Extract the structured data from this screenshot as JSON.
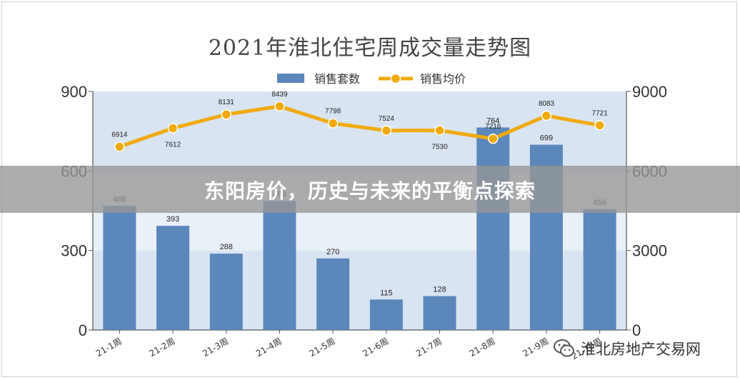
{
  "chart_data": {
    "type": "bar",
    "title": "2021年淮北住宅周成交量走势图",
    "categories": [
      "21-1周",
      "21-2周",
      "21-3周",
      "21-4周",
      "21-5周",
      "21-6周",
      "21-7周",
      "21-8周",
      "21-9周",
      "21-10周"
    ],
    "series": [
      {
        "name": "销售套数",
        "type": "bar",
        "axis": "left",
        "values": [
          468,
          393,
          288,
          486,
          270,
          115,
          128,
          764,
          699,
          456
        ],
        "color": "#5b87bb"
      },
      {
        "name": "销售均价",
        "type": "line",
        "axis": "right",
        "values": [
          6914,
          7612,
          8131,
          8439,
          7798,
          7524,
          7530,
          7216,
          8083,
          7721
        ],
        "color": "#f0aa0a"
      }
    ],
    "y_left": {
      "ticks": [
        "0",
        "300",
        "600",
        "900"
      ],
      "range": [
        0,
        900
      ]
    },
    "y_right": {
      "ticks": [
        "0",
        "3000",
        "6000",
        "9000"
      ],
      "range": [
        0,
        9000
      ]
    },
    "legend_placement": "top-center",
    "grid": true
  },
  "banner": {
    "text": "东阳房价，历史与未来的平衡点探索"
  },
  "source": {
    "text": "淮北房地产交易网",
    "icon": "wechat-icon"
  },
  "colors": {
    "plot_band_dark": "#d9e4f2",
    "plot_band_light": "#e9f0f8"
  }
}
